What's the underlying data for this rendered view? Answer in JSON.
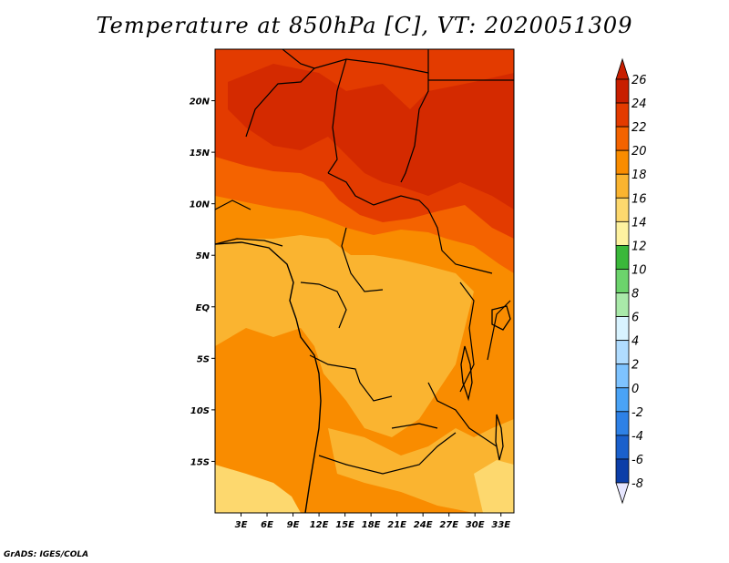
{
  "title": "Temperature at 850hPa [C], VT: 2020051309",
  "credit": "GrADS: IGES/COLA",
  "map": {
    "lon_range": [
      0,
      34.5
    ],
    "lat_range": [
      -20,
      25
    ],
    "lon_ticks": [
      "3E",
      "6E",
      "9E",
      "12E",
      "15E",
      "18E",
      "21E",
      "24E",
      "27E",
      "30E",
      "33E"
    ],
    "lon_tick_values": [
      3,
      6,
      9,
      12,
      15,
      18,
      21,
      24,
      27,
      30,
      33
    ],
    "lat_ticks": [
      "20N",
      "15N",
      "10N",
      "5N",
      "EQ",
      "5S",
      "10S",
      "15S"
    ],
    "lat_tick_values": [
      20,
      15,
      10,
      5,
      0,
      -5,
      -10,
      -15
    ]
  },
  "colorbar": {
    "labels": [
      "26",
      "24",
      "22",
      "20",
      "18",
      "16",
      "14",
      "12",
      "10",
      "8",
      "6",
      "4",
      "2",
      "0",
      "-2",
      "-4",
      "-6",
      "-8"
    ],
    "colors_top_to_bottom": [
      "#c81e00",
      "#e33b00",
      "#f46300",
      "#f98c00",
      "#fab430",
      "#fdd86e",
      "#fef2a0",
      "#3ab83a",
      "#6cd36c",
      "#a9e9a9",
      "#d8f3ff",
      "#b0dcff",
      "#7ec3ff",
      "#4aa3f6",
      "#2e81e6",
      "#1a60cc",
      "#0c3ea8",
      "#041e7a"
    ],
    "top_arrow_color": "#c81e00",
    "bottom_arrow_color": "#e6e6ff"
  }
}
